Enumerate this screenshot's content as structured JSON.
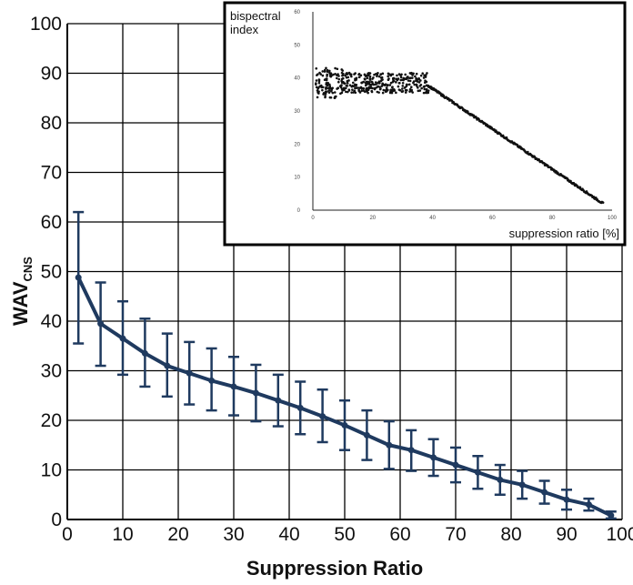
{
  "chart_data": [
    {
      "type": "line",
      "xlabel": "Suppression Ratio",
      "ylabel": "WAV",
      "ylabel_subscript": "CNS",
      "xlim": [
        0,
        100
      ],
      "ylim": [
        0,
        100
      ],
      "x_ticks": [
        "0",
        "10",
        "20",
        "30",
        "40",
        "50",
        "60",
        "70",
        "80",
        "90",
        "100"
      ],
      "y_ticks": [
        "0",
        "10",
        "20",
        "30",
        "40",
        "50",
        "60",
        "70",
        "80",
        "90",
        "100"
      ],
      "grid": true,
      "line_color": "#1f3a5f",
      "series": [
        {
          "x": [
            2,
            6,
            10,
            14,
            18,
            22,
            26,
            30,
            34,
            38,
            42,
            46,
            50,
            54,
            58,
            62,
            66,
            70,
            74,
            78,
            82,
            86,
            90,
            94,
            98
          ],
          "y": [
            48.8,
            39.5,
            36.5,
            33.5,
            31.0,
            29.5,
            28.0,
            26.8,
            25.5,
            24.0,
            22.5,
            20.8,
            19.0,
            17.0,
            15.0,
            14.0,
            12.5,
            11.0,
            9.5,
            8.0,
            7.0,
            5.5,
            4.0,
            3.0,
            0.8
          ],
          "upper": [
            62.0,
            47.8,
            44.0,
            40.5,
            37.5,
            35.8,
            34.5,
            32.8,
            31.2,
            29.2,
            27.8,
            26.2,
            24.0,
            22.0,
            19.8,
            18.0,
            16.2,
            14.5,
            12.8,
            11.0,
            9.8,
            7.8,
            6.0,
            4.2,
            1.6
          ],
          "lower": [
            35.5,
            31.0,
            29.2,
            26.8,
            24.8,
            23.2,
            22.0,
            21.0,
            19.8,
            18.8,
            17.2,
            15.6,
            14.0,
            12.0,
            10.2,
            9.8,
            8.8,
            7.5,
            6.2,
            5.0,
            4.2,
            3.2,
            2.0,
            1.8,
            0.2
          ]
        }
      ]
    },
    {
      "type": "scatter",
      "title": "bispectral index",
      "ylabel_lines": [
        "bispectral",
        "index"
      ],
      "xlabel": "suppression ratio [%]",
      "xlim": [
        0,
        100
      ],
      "ylim": [
        0,
        60
      ],
      "x_ticks": [
        "0",
        "20",
        "40",
        "60",
        "80",
        "100"
      ],
      "y_ticks": [
        "0",
        "10",
        "20",
        "30",
        "40",
        "50",
        "60"
      ],
      "trend": {
        "cluster_x_range": [
          0,
          38
        ],
        "cluster_y_center": 38.5,
        "cluster_y_spread": 3.8,
        "linear_from": [
          38,
          38
        ],
        "linear_to": [
          97,
          2
        ]
      }
    }
  ]
}
